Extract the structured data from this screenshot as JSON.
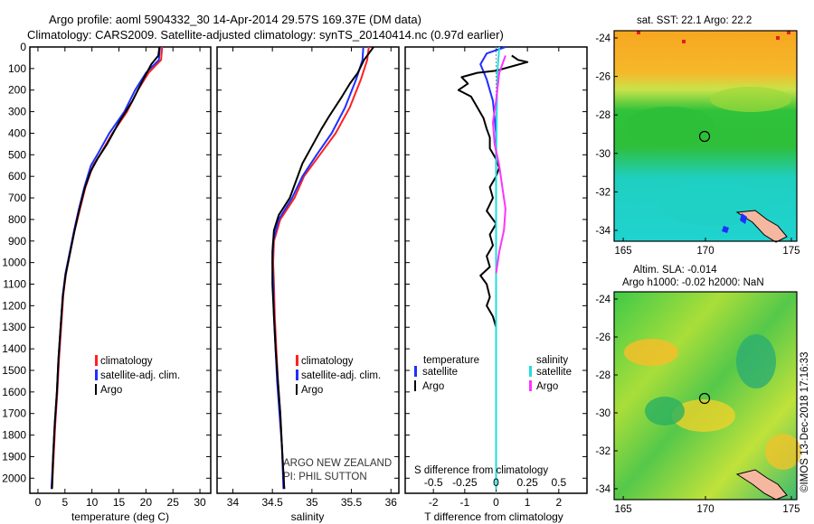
{
  "title": {
    "line1": "Argo profile: aoml 5904332_30 14-Apr-2014 29.57S 169.37E (DM data)",
    "line2": "Climatology: CARS2009. Satellite-adjusted climatology: synTS_20140414.nc (0.97d earlier)"
  },
  "credits": {
    "line1": "ARGO NEW ZEALAND",
    "line2": "PI: PHIL SUTTON",
    "imos": "©IMOS 13-Dec-2018 17:16:33"
  },
  "colors": {
    "climatology": "#ff2020",
    "satellite": "#1f2fff",
    "argo": "#000000",
    "salinity_satellite": "#22dddd",
    "salinity_argo": "#ff33ff"
  },
  "chart_data": [
    {
      "type": "line",
      "xlabel": "temperature (deg C)",
      "ylabel": "",
      "xlim": [
        -1.5,
        32
      ],
      "ylim": [
        2070,
        0
      ],
      "xticks": [
        0,
        5,
        10,
        15,
        20,
        25,
        30
      ],
      "yticks": [
        0,
        100,
        200,
        300,
        400,
        500,
        600,
        700,
        800,
        900,
        1000,
        1100,
        1200,
        1300,
        1400,
        1500,
        1600,
        1700,
        1800,
        1900,
        2000
      ],
      "legend": [
        "climatology",
        "satellite-adj. clim.",
        "Argo"
      ],
      "series": [
        {
          "name": "climatology",
          "color": "#ff2020",
          "points": [
            [
              23.0,
              0
            ],
            [
              22.8,
              60
            ],
            [
              20.5,
              120
            ],
            [
              18.5,
              200
            ],
            [
              16.5,
              300
            ],
            [
              13.8,
              400
            ],
            [
              11.5,
              500
            ],
            [
              10.2,
              550
            ],
            [
              8.8,
              650
            ],
            [
              7.8,
              750
            ],
            [
              6.8,
              850
            ],
            [
              6.0,
              950
            ],
            [
              5.2,
              1050
            ],
            [
              4.7,
              1150
            ],
            [
              4.3,
              1300
            ],
            [
              3.9,
              1450
            ],
            [
              3.6,
              1600
            ],
            [
              3.2,
              1750
            ],
            [
              2.9,
              1900
            ],
            [
              2.6,
              2050
            ]
          ]
        },
        {
          "name": "satellite-adj. clim.",
          "color": "#1f2fff",
          "points": [
            [
              22.6,
              0
            ],
            [
              22.4,
              60
            ],
            [
              20.0,
              120
            ],
            [
              18.0,
              200
            ],
            [
              16.0,
              300
            ],
            [
              13.2,
              400
            ],
            [
              11.0,
              500
            ],
            [
              9.8,
              550
            ],
            [
              8.6,
              650
            ],
            [
              7.6,
              750
            ],
            [
              6.7,
              850
            ],
            [
              5.9,
              950
            ],
            [
              5.1,
              1050
            ],
            [
              4.6,
              1150
            ],
            [
              4.2,
              1300
            ],
            [
              3.8,
              1450
            ],
            [
              3.5,
              1600
            ],
            [
              3.1,
              1750
            ],
            [
              2.8,
              1900
            ],
            [
              2.5,
              2050
            ]
          ]
        },
        {
          "name": "Argo",
          "color": "#000000",
          "points": [
            [
              22.5,
              0
            ],
            [
              22.3,
              40
            ],
            [
              21.0,
              80
            ],
            [
              19.5,
              150
            ],
            [
              17.5,
              250
            ],
            [
              15.0,
              350
            ],
            [
              12.8,
              450
            ],
            [
              11.0,
              520
            ],
            [
              9.7,
              580
            ],
            [
              8.6,
              660
            ],
            [
              7.6,
              760
            ],
            [
              6.7,
              860
            ],
            [
              5.9,
              960
            ],
            [
              5.1,
              1060
            ],
            [
              4.6,
              1160
            ],
            [
              4.2,
              1300
            ],
            [
              3.8,
              1450
            ],
            [
              3.5,
              1600
            ],
            [
              3.1,
              1750
            ],
            [
              2.8,
              1900
            ],
            [
              2.6,
              2050
            ]
          ]
        }
      ]
    },
    {
      "type": "line",
      "xlabel": "salinity",
      "ylabel": "",
      "xlim": [
        33.8,
        36.1
      ],
      "ylim": [
        2070,
        0
      ],
      "xticks": [
        34,
        34.5,
        35,
        35.5,
        36
      ],
      "xtick_labels": [
        "34",
        "34.5",
        "35",
        "35.5",
        "36"
      ],
      "legend": [
        "climatology",
        "satellite-adj. clim.",
        "Argo"
      ],
      "series": [
        {
          "name": "climatology",
          "color": "#ff2020",
          "points": [
            [
              35.72,
              0
            ],
            [
              35.7,
              60
            ],
            [
              35.62,
              150
            ],
            [
              35.48,
              280
            ],
            [
              35.3,
              400
            ],
            [
              35.1,
              500
            ],
            [
              34.9,
              600
            ],
            [
              34.78,
              700
            ],
            [
              34.6,
              800
            ],
            [
              34.52,
              900
            ],
            [
              34.51,
              1000
            ],
            [
              34.52,
              1100
            ],
            [
              34.53,
              1250
            ],
            [
              34.55,
              1400
            ],
            [
              34.57,
              1550
            ],
            [
              34.6,
              1700
            ],
            [
              34.62,
              1850
            ],
            [
              34.65,
              2050
            ]
          ]
        },
        {
          "name": "satellite-adj. clim.",
          "color": "#1f2fff",
          "points": [
            [
              35.65,
              0
            ],
            [
              35.64,
              60
            ],
            [
              35.56,
              150
            ],
            [
              35.42,
              280
            ],
            [
              35.25,
              400
            ],
            [
              35.06,
              500
            ],
            [
              34.88,
              600
            ],
            [
              34.75,
              700
            ],
            [
              34.58,
              800
            ],
            [
              34.51,
              900
            ],
            [
              34.5,
              1000
            ],
            [
              34.51,
              1100
            ],
            [
              34.52,
              1250
            ],
            [
              34.54,
              1400
            ],
            [
              34.56,
              1550
            ],
            [
              34.59,
              1700
            ],
            [
              34.62,
              1850
            ],
            [
              34.64,
              2050
            ]
          ]
        },
        {
          "name": "Argo",
          "color": "#000000",
          "points": [
            [
              35.78,
              0
            ],
            [
              35.72,
              30
            ],
            [
              35.66,
              60
            ],
            [
              35.58,
              120
            ],
            [
              35.48,
              170
            ],
            [
              35.38,
              230
            ],
            [
              35.22,
              320
            ],
            [
              35.12,
              380
            ],
            [
              35.0,
              460
            ],
            [
              34.88,
              540
            ],
            [
              34.8,
              620
            ],
            [
              34.72,
              700
            ],
            [
              34.58,
              780
            ],
            [
              34.52,
              850
            ],
            [
              34.5,
              950
            ],
            [
              34.5,
              1100
            ],
            [
              34.52,
              1250
            ],
            [
              34.54,
              1400
            ],
            [
              34.57,
              1550
            ],
            [
              34.6,
              1700
            ],
            [
              34.62,
              1850
            ],
            [
              34.65,
              2050
            ]
          ]
        }
      ]
    },
    {
      "type": "line",
      "xlabel": "T difference from climatology",
      "ylabel": "",
      "xlim": [
        -2.9,
        2.9
      ],
      "ylim": [
        2070,
        0
      ],
      "xticks": [
        -2,
        -1,
        0,
        1,
        2
      ],
      "secondary_axis_label": "S difference from climatology",
      "secondary_xticks": [
        "-0.5",
        "-0.25",
        "0",
        "0.25",
        "0.5"
      ],
      "legend_left": {
        "title": "temperature",
        "items": [
          "satellite",
          "Argo"
        ]
      },
      "legend_right": {
        "title": "salinity",
        "items": [
          "satellite",
          "Argo"
        ]
      },
      "series": [
        {
          "name": "satellite",
          "color": "#1f2fff",
          "points": [
            [
              0.3,
              0
            ],
            [
              -0.3,
              30
            ],
            [
              -0.5,
              80
            ],
            [
              -0.3,
              150
            ],
            [
              -0.1,
              250
            ],
            [
              0.0,
              400
            ],
            [
              0.0,
              600
            ],
            [
              0.0,
              800
            ],
            [
              0.0,
              1000
            ],
            [
              0.0,
              1200
            ],
            [
              0.0,
              1500
            ],
            [
              0.0,
              2050
            ]
          ]
        },
        {
          "name": "Argo",
          "color": "#000000",
          "points": [
            [
              0.5,
              40
            ],
            [
              0.7,
              60
            ],
            [
              1.0,
              70
            ],
            [
              0.5,
              90
            ],
            [
              0.0,
              110
            ],
            [
              -0.6,
              120
            ],
            [
              -1.1,
              140
            ],
            [
              -0.9,
              170
            ],
            [
              -1.2,
              200
            ],
            [
              -0.8,
              230
            ],
            [
              -0.6,
              280
            ],
            [
              -0.4,
              330
            ],
            [
              -0.3,
              380
            ],
            [
              -0.2,
              420
            ],
            [
              -0.2,
              470
            ],
            [
              0.0,
              520
            ],
            [
              0.1,
              560
            ],
            [
              0.0,
              600
            ],
            [
              -0.2,
              650
            ],
            [
              -0.1,
              700
            ],
            [
              -0.3,
              760
            ],
            [
              0.0,
              820
            ],
            [
              -0.2,
              870
            ],
            [
              -0.1,
              920
            ],
            [
              -0.3,
              970
            ],
            [
              -0.2,
              1020
            ],
            [
              -0.5,
              1060
            ],
            [
              -0.3,
              1100
            ],
            [
              -0.2,
              1160
            ],
            [
              -0.3,
              1200
            ],
            [
              -0.1,
              1250
            ],
            [
              0.0,
              1300
            ]
          ]
        },
        {
          "name": "salinity satellite",
          "color": "#22dddd",
          "points": [
            [
              0.1,
              0
            ],
            [
              0.05,
              100
            ],
            [
              0.02,
              300
            ],
            [
              0.0,
              600
            ],
            [
              0.0,
              1000
            ],
            [
              0.0,
              1500
            ],
            [
              0.0,
              2050
            ]
          ]
        },
        {
          "name": "salinity Argo",
          "color": "#ff33ff",
          "points": [
            [
              0.3,
              40
            ],
            [
              0.1,
              120
            ],
            [
              0.0,
              250
            ],
            [
              -0.1,
              350
            ],
            [
              -0.05,
              450
            ],
            [
              0.1,
              550
            ],
            [
              0.2,
              650
            ],
            [
              0.3,
              750
            ],
            [
              0.25,
              850
            ],
            [
              0.1,
              950
            ],
            [
              0.0,
              1050
            ]
          ]
        }
      ]
    }
  ],
  "maps": [
    {
      "title": "sat. SST: 22.1 Argo: 22.2",
      "xticks": [
        "165",
        "170",
        "175"
      ],
      "yticks": [
        "-24",
        "-26",
        "-28",
        "-30",
        "-32",
        "-34"
      ]
    },
    {
      "title_line1": "Altim. SLA: -0.014",
      "title_line2": "Argo h1000: -0.02 h2000: NaN",
      "xticks": [
        "165",
        "170",
        "175"
      ],
      "yticks": [
        "-24",
        "-26",
        "-28",
        "-30",
        "-32",
        "-34"
      ]
    }
  ]
}
